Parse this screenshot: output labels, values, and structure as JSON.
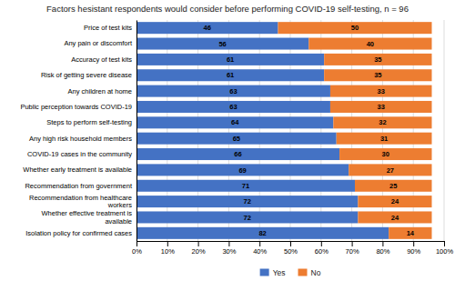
{
  "chart_data": {
    "type": "bar",
    "title": "Factors hesistant respondents would consider before performing COVID-19 self-testing, n = 96",
    "orientation": "horizontal",
    "stacked": true,
    "data_labels": true,
    "grid": true,
    "legend": "bottom",
    "categories": [
      "Price of test kits",
      "Any pain or discomfort",
      "Accuracy of test kits",
      "Risk of getting severe disease",
      "Any children at home",
      "Public perception towards COVID-19",
      "Steps to perform self-testing",
      "Any high risk household members",
      "COVID-19 cases in the community",
      "Whether early treatment is available",
      "Recommendation from government",
      "Recommendation from healthcare\nworkers",
      "Whether effective treatment is\navailable",
      "Isolation policy for confirmed cases"
    ],
    "series": [
      {
        "name": "Yes",
        "color": "#4472C4",
        "values": [
          46,
          56,
          61,
          61,
          63,
          63,
          64,
          65,
          66,
          69,
          71,
          72,
          72,
          82
        ]
      },
      {
        "name": "No",
        "color": "#ED7D31",
        "values": [
          50,
          40,
          35,
          35,
          33,
          33,
          32,
          31,
          30,
          27,
          25,
          24,
          24,
          14
        ]
      }
    ],
    "xlim": [
      0,
      100
    ],
    "xticks": [
      {
        "value": 0,
        "label": "0%"
      },
      {
        "value": 10,
        "label": "10%"
      },
      {
        "value": 20,
        "label": "20%"
      },
      {
        "value": 30,
        "label": "30%"
      },
      {
        "value": 40,
        "label": "40%"
      },
      {
        "value": 50,
        "label": "50%"
      },
      {
        "value": 60,
        "label": "60%"
      },
      {
        "value": 70,
        "label": "70%"
      },
      {
        "value": 80,
        "label": "80%"
      },
      {
        "value": 90,
        "label": "90%"
      },
      {
        "value": 100,
        "label": "100%"
      }
    ]
  }
}
